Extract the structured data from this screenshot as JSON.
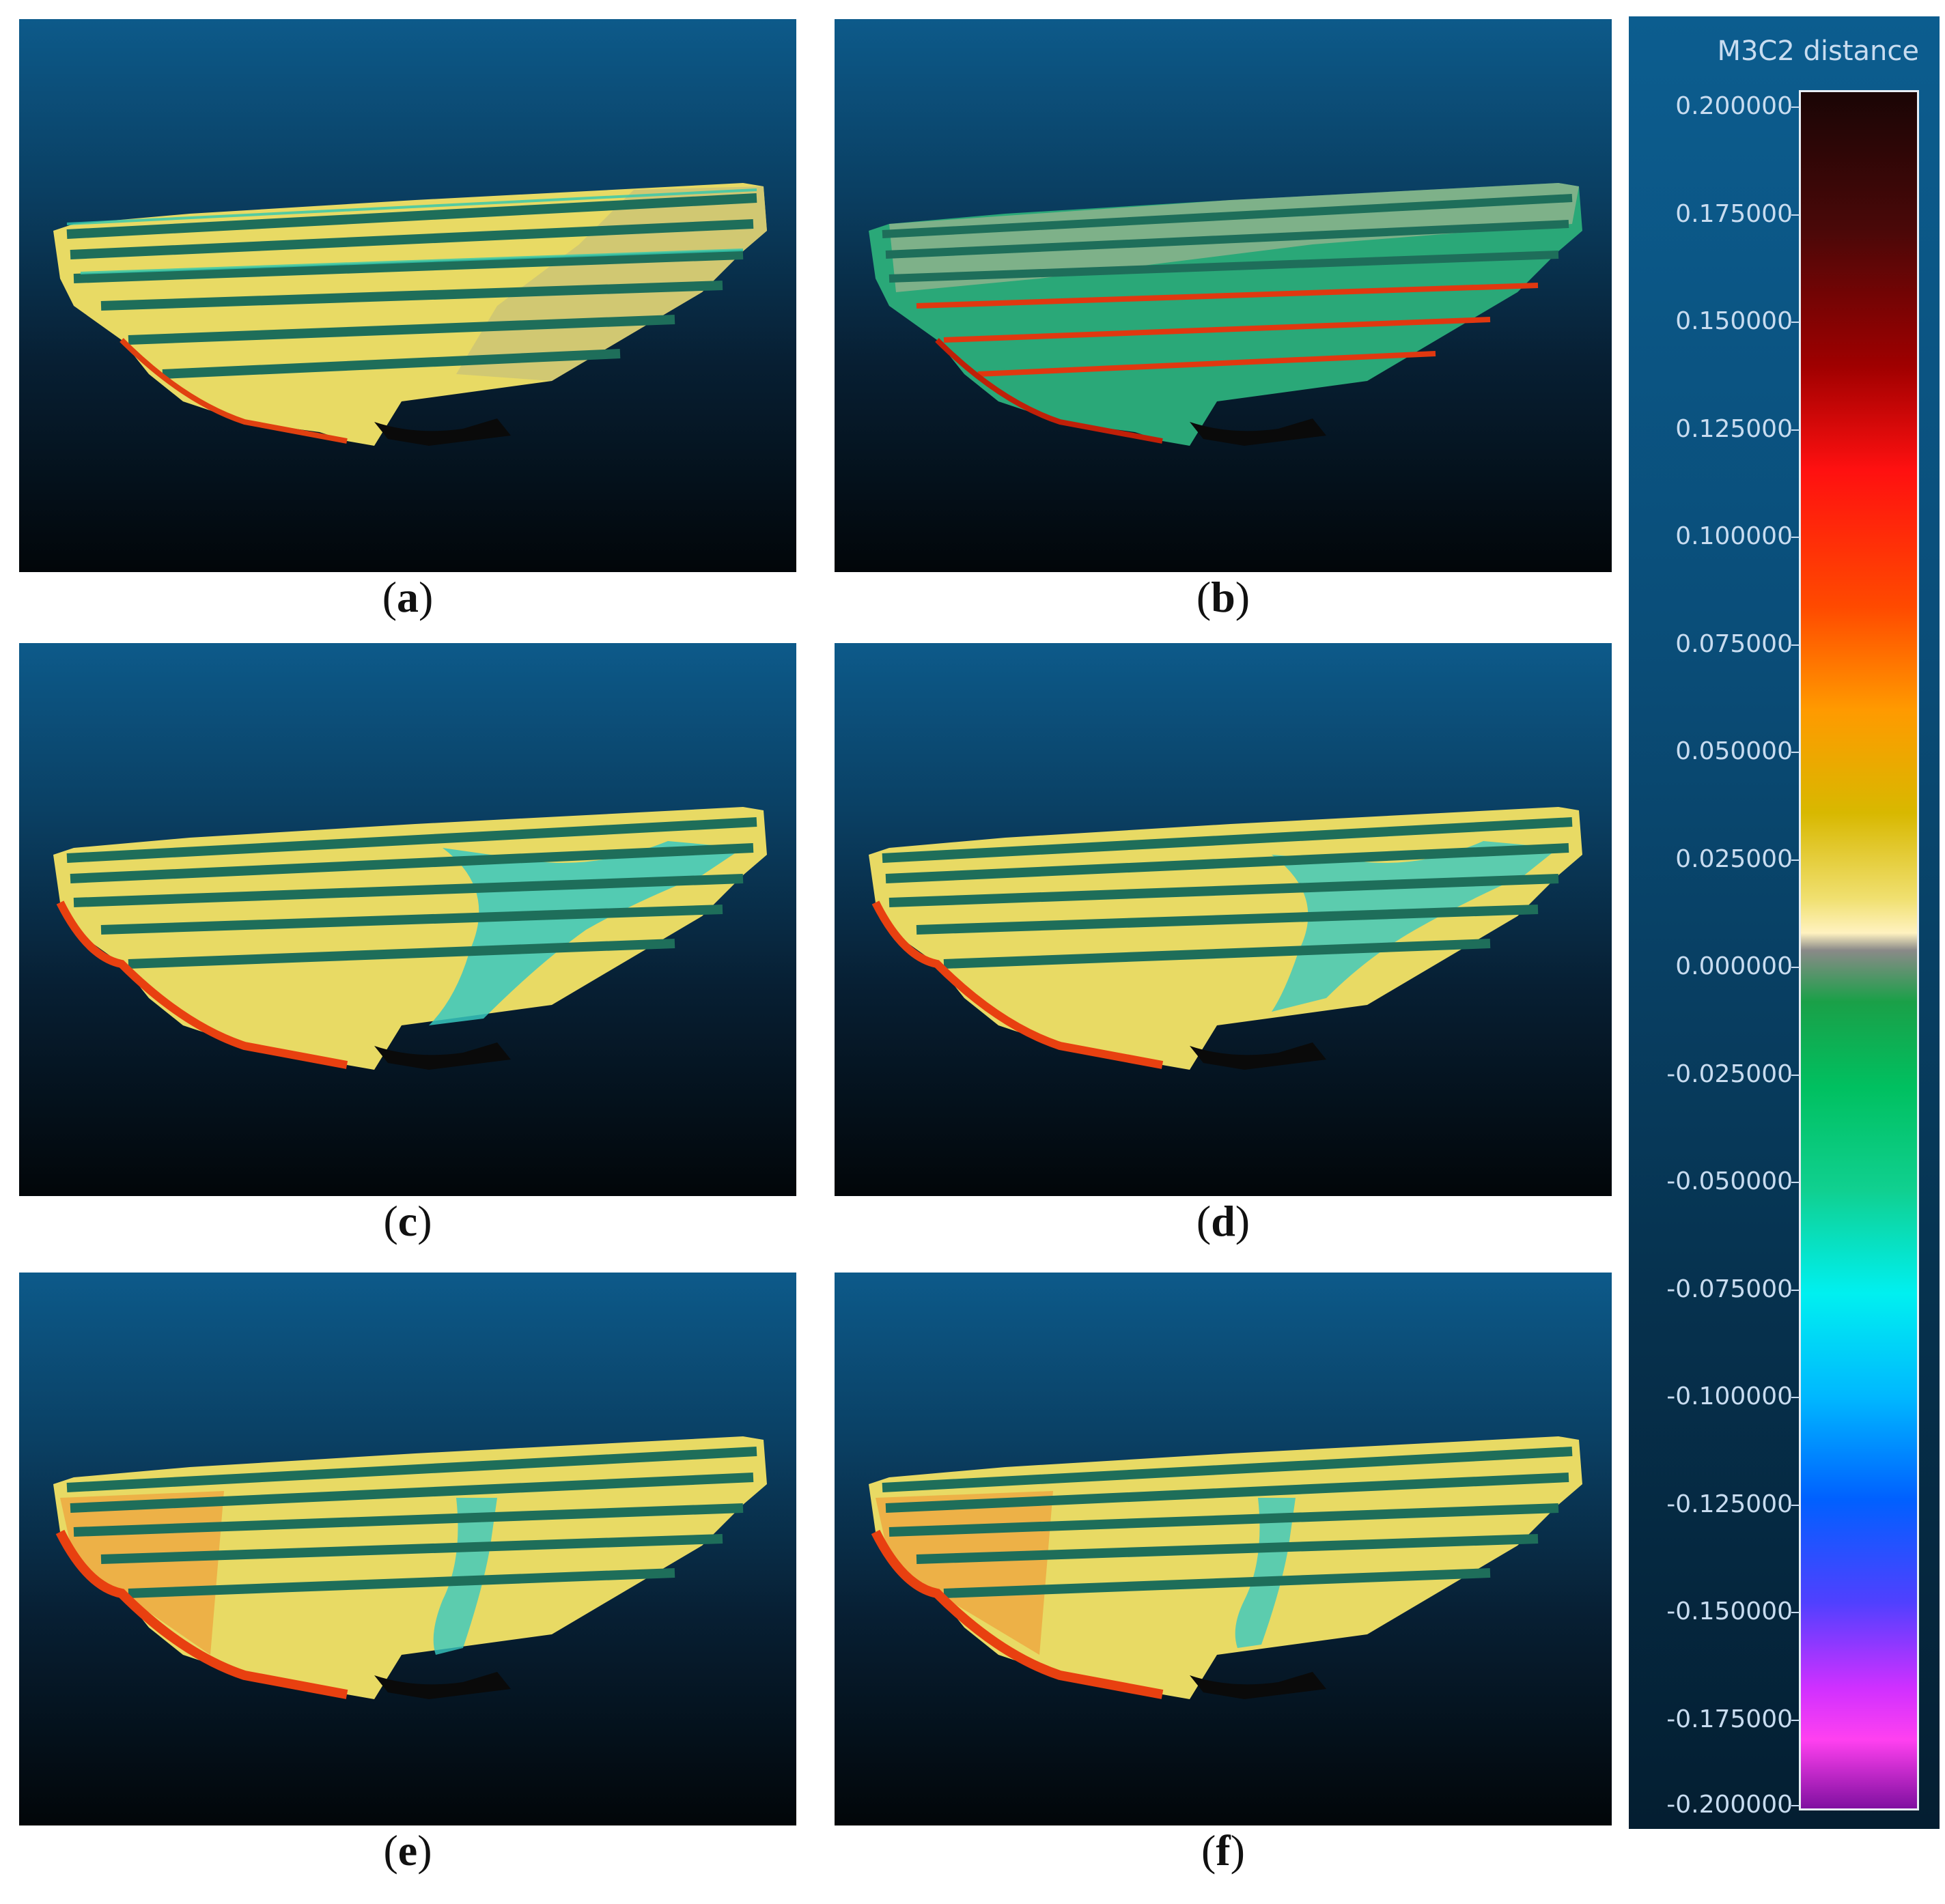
{
  "figure": {
    "panels": [
      {
        "label": "a",
        "caption_open": "(",
        "caption_close": ")",
        "dominant": "yellow"
      },
      {
        "label": "b",
        "caption_open": "(",
        "caption_close": ")",
        "dominant": "green"
      },
      {
        "label": "c",
        "caption_open": "(",
        "caption_close": ")",
        "dominant": "yellow-cyan"
      },
      {
        "label": "d",
        "caption_open": "(",
        "caption_close": ")",
        "dominant": "yellow-cyan"
      },
      {
        "label": "e",
        "caption_open": "(",
        "caption_close": ")",
        "dominant": "yellow-orange"
      },
      {
        "label": "f",
        "caption_open": "(",
        "caption_close": ")",
        "dominant": "yellow-orange"
      }
    ]
  },
  "legend": {
    "title": "M3C2 distance",
    "ticks": [
      "0.200000",
      "0.175000",
      "0.150000",
      "0.125000",
      "0.100000",
      "0.075000",
      "0.050000",
      "0.025000",
      "0.000000",
      "-0.025000",
      "-0.050000",
      "-0.075000",
      "-0.100000",
      "-0.125000",
      "-0.150000",
      "-0.175000",
      "-0.200000"
    ],
    "colormap": [
      "#1a0505",
      "#a00000",
      "#ff1010",
      "#ff9a00",
      "#d8b800",
      "#fff2c0",
      "#8a8a88",
      "#00c060",
      "#00f0f0",
      "#0060ff",
      "#d030ff",
      "#8010a0"
    ]
  }
}
